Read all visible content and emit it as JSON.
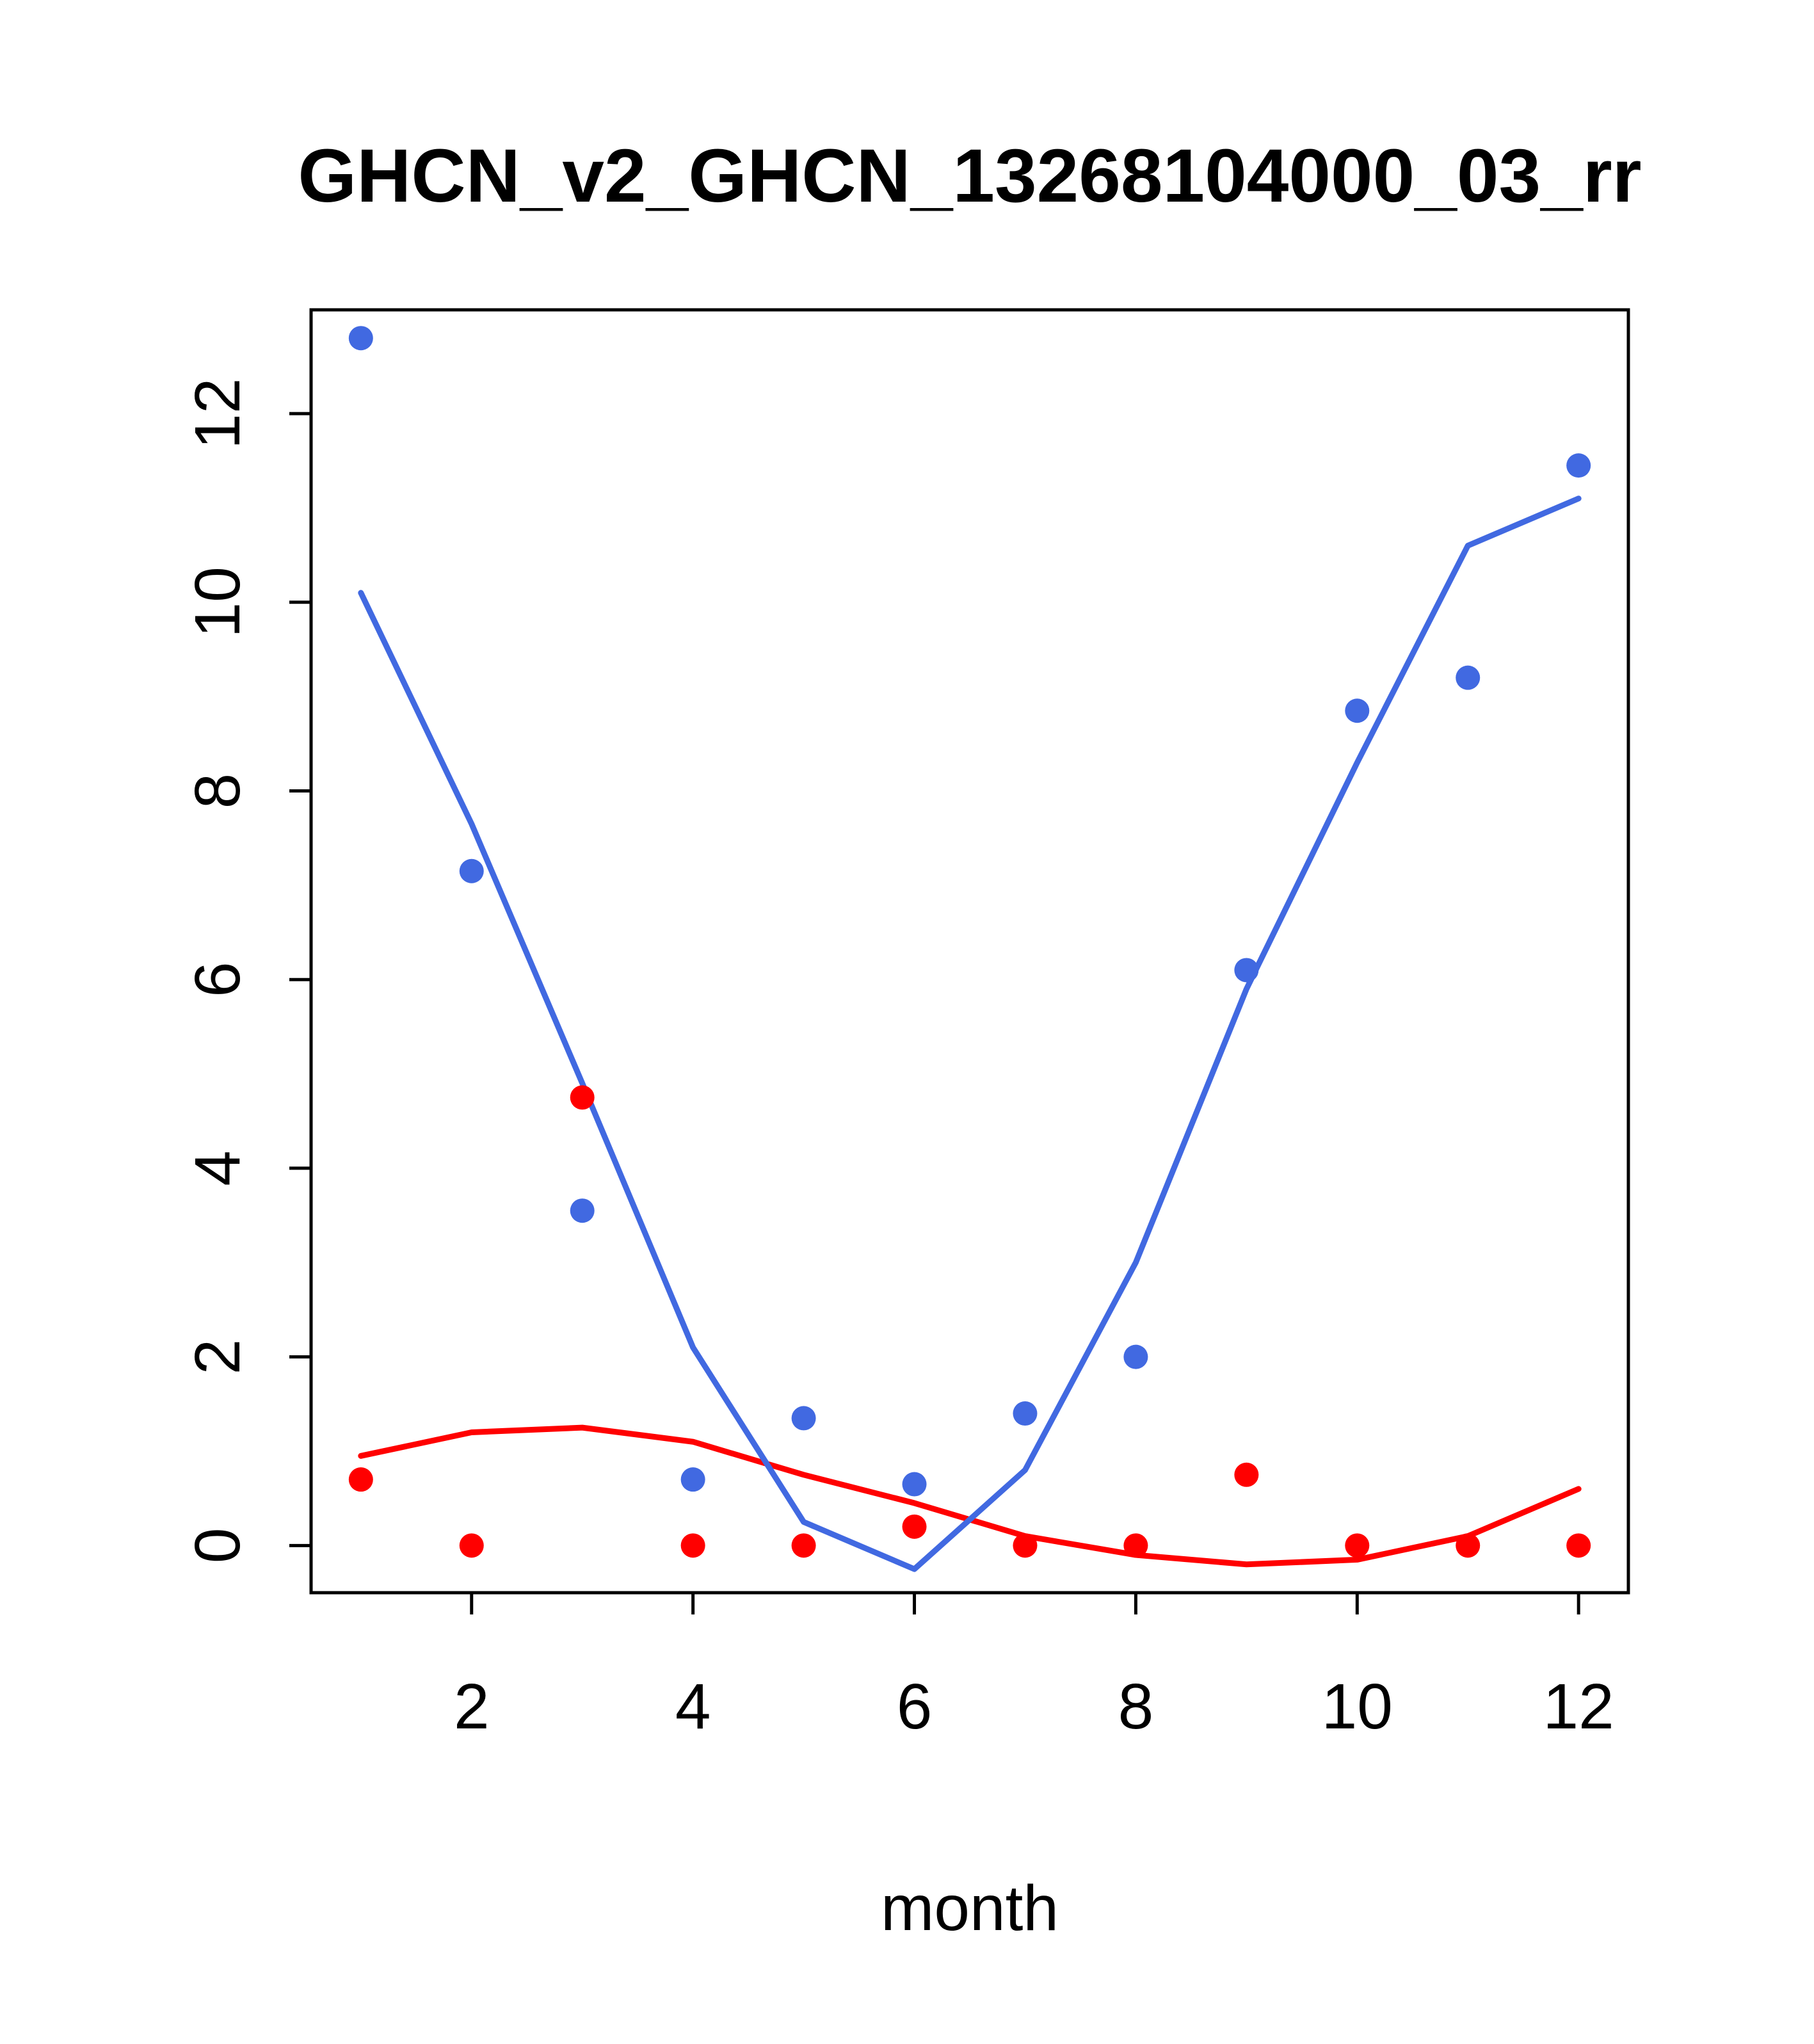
{
  "title": "GHCN_v2_GHCN_13268104000_03_rr",
  "chart_data": {
    "type": "scatter",
    "title": "GHCN_v2_GHCN_13268104000_03_rr",
    "xlabel": "month",
    "ylabel": "",
    "x": [
      1,
      2,
      3,
      4,
      5,
      6,
      7,
      8,
      9,
      10,
      11,
      12
    ],
    "xticks": [
      2,
      4,
      6,
      8,
      10,
      12
    ],
    "yticks": [
      0,
      2,
      4,
      6,
      8,
      10,
      12
    ],
    "xlim": [
      0.55,
      12.45
    ],
    "ylim": [
      -0.5,
      13.1
    ],
    "grid": false,
    "legend": "none",
    "series": [
      {
        "name": "red-fit-line",
        "kind": "line",
        "color": "#FF0000",
        "values": [
          0.95,
          1.2,
          1.25,
          1.1,
          0.75,
          0.45,
          0.1,
          -0.1,
          -0.2,
          -0.15,
          0.1,
          0.6
        ]
      },
      {
        "name": "blue-fit-line",
        "kind": "line",
        "color": "#4169E1",
        "values": [
          10.1,
          7.65,
          4.9,
          2.1,
          0.25,
          -0.25,
          0.8,
          3.0,
          5.9,
          8.3,
          10.6,
          11.1
        ]
      },
      {
        "name": "blue-points",
        "kind": "points",
        "color": "#4169E1",
        "values": [
          12.8,
          7.15,
          3.55,
          0.7,
          1.35,
          0.65,
          1.4,
          2.0,
          6.1,
          8.85,
          9.2,
          11.45
        ]
      },
      {
        "name": "red-points",
        "kind": "points",
        "color": "#FF0000",
        "values": [
          0.7,
          0.0,
          4.75,
          0.0,
          0.0,
          0.2,
          0.0,
          0.0,
          0.75,
          0.0,
          0.0,
          0.0
        ]
      }
    ],
    "colors": {
      "blue": "#4169E1",
      "red": "#FF0000",
      "axis": "#000000",
      "background": "#FFFFFF"
    }
  }
}
